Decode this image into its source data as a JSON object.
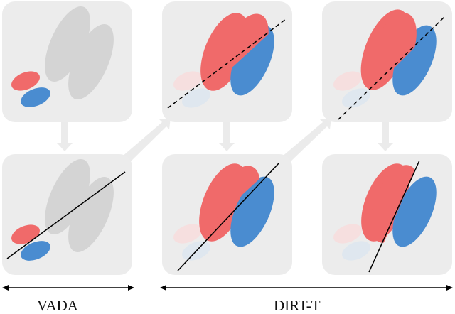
{
  "labels": {
    "vada": "VADA",
    "dirt_t": "DIRT-T"
  },
  "colors": {
    "panel_fill": "#ececec",
    "source_red": "#f06a6a",
    "source_blue": "#4a8cd0",
    "target_gray": "#d3d3d3",
    "faded_red": "#f8e2e2",
    "faded_blue": "#e2ebf3",
    "arrow_gray": "#ebebeb",
    "boundary": "#000000"
  },
  "panels": [
    {
      "id": "initial",
      "row": "top",
      "stage": "vada",
      "boundary": "none"
    },
    {
      "id": "dirt-step-1",
      "row": "top",
      "stage": "dirt-t",
      "boundary": "dashed"
    },
    {
      "id": "dirt-step-2",
      "row": "top",
      "stage": "dirt-t",
      "boundary": "dashed"
    },
    {
      "id": "vada-result",
      "row": "bottom",
      "stage": "vada",
      "boundary": "solid"
    },
    {
      "id": "dirt-result-1",
      "row": "bottom",
      "stage": "dirt-t",
      "boundary": "solid"
    },
    {
      "id": "dirt-result-2",
      "row": "bottom",
      "stage": "dirt-t",
      "boundary": "solid"
    }
  ]
}
